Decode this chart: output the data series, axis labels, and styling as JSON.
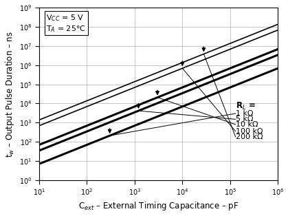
{
  "xlabel": "C$_{ext}$ – External Timing Capacitance – pF",
  "ylabel": "t$_w$ – Output Pulse Duration – ns",
  "annotation_text": "V$_{CC}$ = 5 V\nT$_A$ = 25°C",
  "xmin": 10,
  "xmax": 1000000.0,
  "ymin": 1,
  "ymax": 1000000000.0,
  "RL_values": [
    1000,
    5000,
    10000,
    100000,
    200000
  ],
  "RL_labels": [
    "1 kΩ",
    "5 kΩ",
    "10 kΩ",
    "100 kΩ",
    "200 kΩ"
  ],
  "K": 0.693,
  "lw_list": [
    2.2,
    2.2,
    2.2,
    1.2,
    1.2
  ],
  "background_color": "#ffffff",
  "grid_color": "#bbbbbb",
  "font_size": 8.5,
  "arrow_tip_C": [
    300,
    1200,
    3000,
    10000,
    28000
  ]
}
